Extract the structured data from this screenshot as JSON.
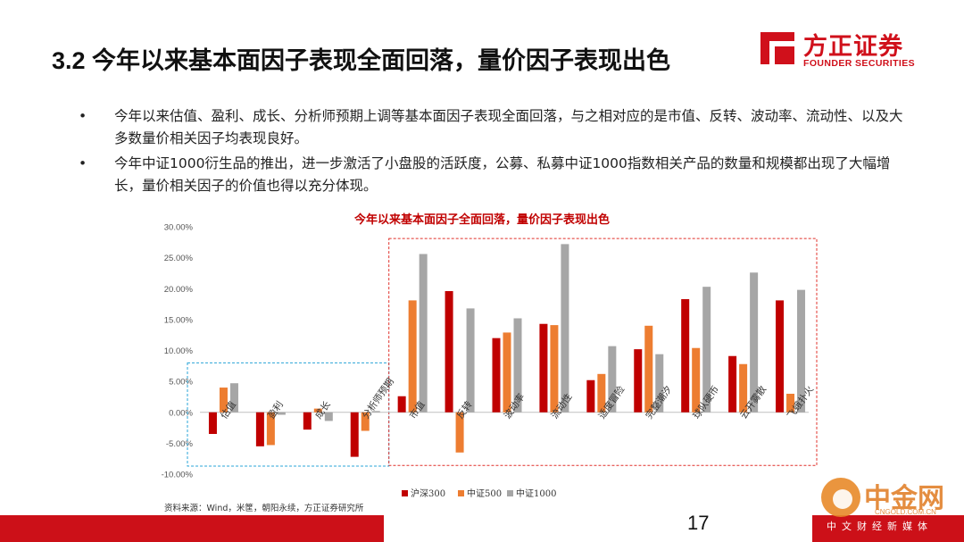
{
  "header": {
    "title": "3.2 今年以来基本面因子表现全面回落，量价因子表现出色"
  },
  "logo": {
    "name_cn": "方正证券",
    "name_en": "FOUNDER SECURITIES",
    "color": "#d0101b"
  },
  "bullets": [
    {
      "marker": "•",
      "text": "今年以来估值、盈利、成长、分析师预期上调等基本面因子表现全面回落，与之相对应的是市值、反转、波动率、流动性、以及大多数量价相关因子均表现良好。"
    },
    {
      "marker": "•",
      "text": "今年中证1000衍生品的推出，进一步激活了小盘股的活跃度，公募、私募中证1000指数相关产品的数量和规模都出现了大幅增长，量价相关因子的价值也得以充分体现。"
    }
  ],
  "chart_data": {
    "type": "bar",
    "title": "今年以来基本面因子全面回落，量价因子表现出色",
    "categories": [
      "估值",
      "盈利",
      "成长",
      "分析师预期",
      "市值",
      "反转",
      "波动率",
      "流动性",
      "适度冒险",
      "完整潮汐",
      "球队硬币",
      "云开雾散",
      "飞蛾扑火"
    ],
    "series": [
      {
        "name": "沪深300",
        "color": "#c00000",
        "values": [
          -3.5,
          -5.5,
          -2.8,
          -7.2,
          2.6,
          19.6,
          12.0,
          14.3,
          5.2,
          10.2,
          18.3,
          9.1,
          18.1
        ]
      },
      {
        "name": "中证500",
        "color": "#ed7d31",
        "values": [
          4.0,
          -5.3,
          0.6,
          -3.0,
          18.1,
          -6.5,
          12.9,
          14.1,
          6.2,
          14.0,
          10.4,
          7.8,
          3.0
        ]
      },
      {
        "name": "中证1000",
        "color": "#a6a6a6",
        "values": [
          4.7,
          -0.4,
          -1.4,
          0.2,
          25.6,
          16.8,
          15.2,
          27.2,
          10.7,
          9.4,
          20.3,
          22.6,
          19.8
        ]
      }
    ],
    "ylim": [
      -10,
      30
    ],
    "yticks": [
      -10,
      -5,
      0,
      5,
      10,
      15,
      20,
      25,
      30
    ],
    "ytick_labels": [
      "-10.00%",
      "-5.00%",
      "0.00%",
      "5.00%",
      "10.00%",
      "15.00%",
      "20.00%",
      "25.00%",
      "30.00%"
    ],
    "grid": false,
    "legend": "bottom-center",
    "highlight_groups": [
      {
        "categories": [
          "估值",
          "盈利",
          "成长",
          "分析师预期"
        ],
        "style": "dashed",
        "color": "#2aa4d8"
      },
      {
        "categories": [
          "市值",
          "反转",
          "波动率",
          "流动性",
          "适度冒险",
          "完整潮汐",
          "球队硬币",
          "云开雾散",
          "飞蛾扑火"
        ],
        "style": "dashed",
        "color": "#e0302a"
      }
    ]
  },
  "source": "资料来源：Wind，米筐，朝阳永续，方正证券研究所",
  "footer": {
    "page_number": "17",
    "bar_color": "#cc1018"
  },
  "watermark": {
    "name": "中金网",
    "url": "CNGOLD.COM.CN",
    "tagline": "中文财经新媒体"
  }
}
